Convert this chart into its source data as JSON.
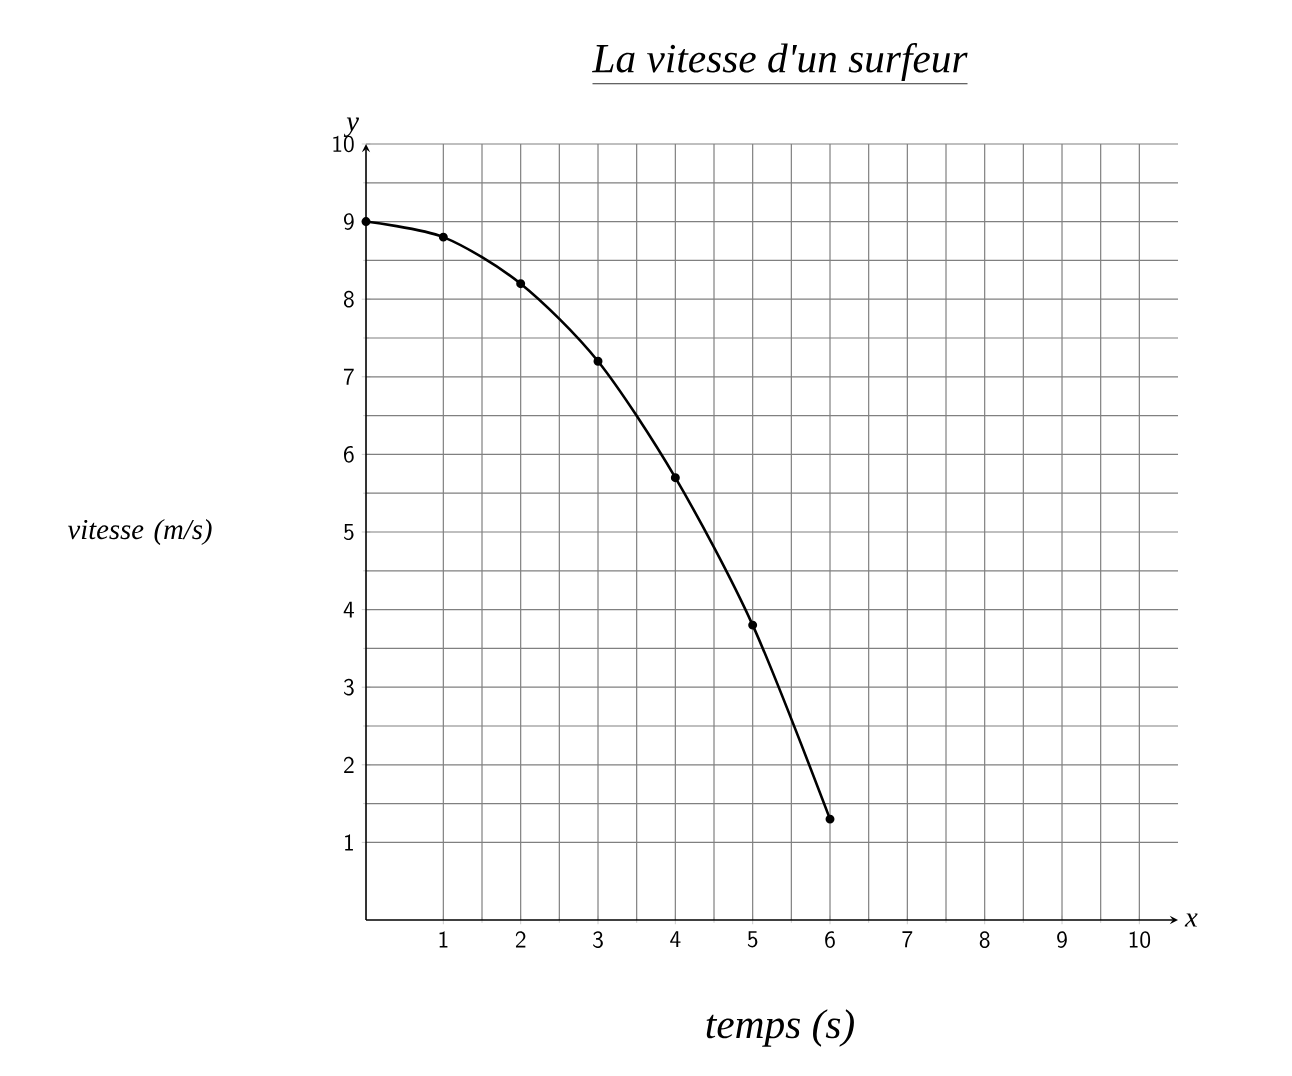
{
  "chart_data": {
    "type": "line",
    "title": "La vitesse d'un surfeur",
    "xlabel": "temps (s)",
    "ylabel": "vitesse (m/s)",
    "annotations": [
      "x",
      "y"
    ],
    "x": [
      0,
      1,
      2,
      3,
      4,
      5,
      6
    ],
    "series": [
      {
        "color": "#000000",
        "values": [
          9,
          8.8,
          8.2,
          7.2,
          5.7,
          3.8,
          1.3
        ]
      }
    ],
    "xlim": [
      0,
      10.5
    ],
    "ylim": [
      0,
      10
    ],
    "xticks": [
      1,
      2,
      3,
      4,
      5,
      6,
      7,
      8,
      9,
      10
    ],
    "yticks": [
      1,
      2,
      3,
      4,
      5,
      6,
      7,
      8,
      9,
      10
    ],
    "grid": true,
    "marker": "circle",
    "line_style": "solid"
  }
}
